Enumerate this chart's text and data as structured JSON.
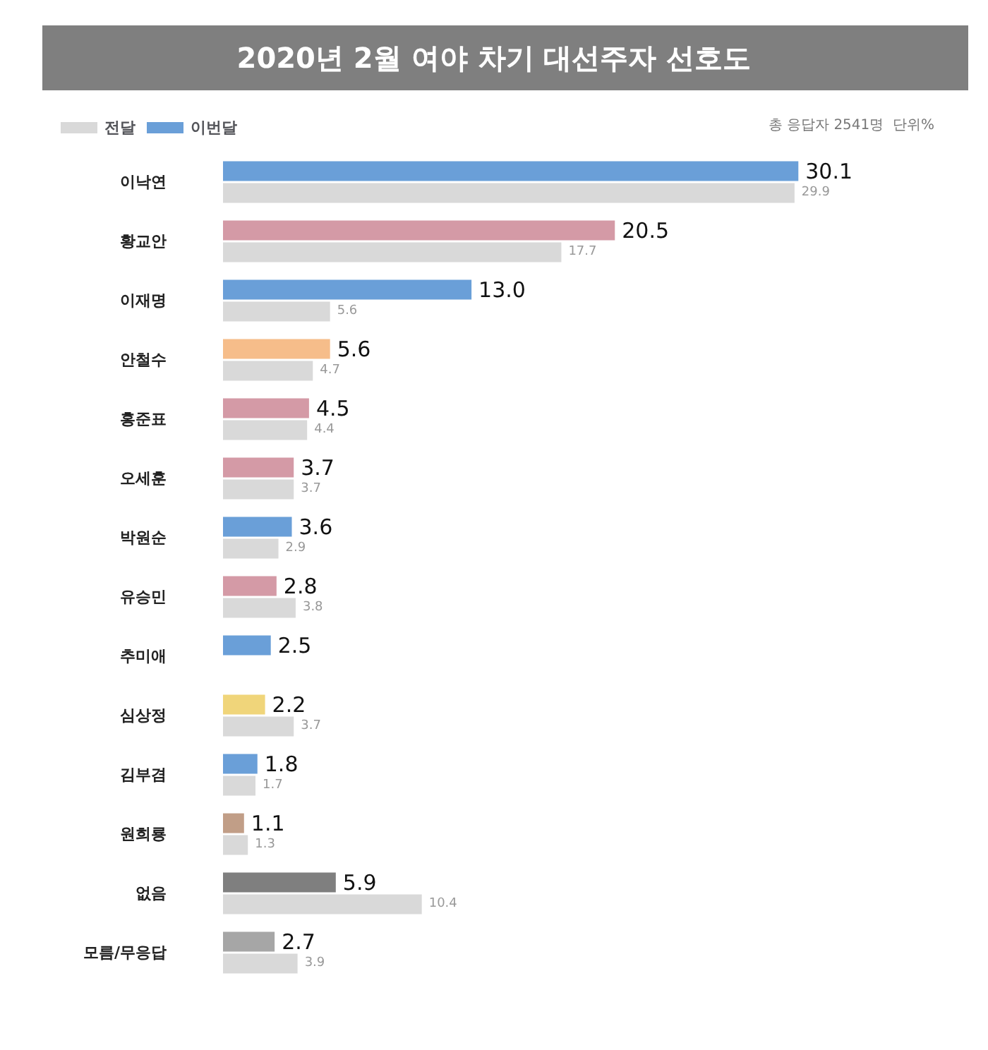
{
  "chart_data": {
    "type": "bar",
    "orientation": "horizontal",
    "title": "2020년 2월 여야 차기 대선주자 선호도",
    "annotations": [
      "총 응답자 2541명  단위%"
    ],
    "categories": [
      "이낙연",
      "황교안",
      "이재명",
      "안철수",
      "홍준표",
      "오세훈",
      "박원순",
      "유승민",
      "추미애",
      "심상정",
      "김부겸",
      "원희룡",
      "없음",
      "모름/무응답"
    ],
    "series": [
      {
        "name": "이번달",
        "color": "#6a9fd8",
        "colors": [
          "#6a9fd8",
          "#d49aa6",
          "#6a9fd8",
          "#f6bd8a",
          "#d49aa6",
          "#d49aa6",
          "#6a9fd8",
          "#d49aa6",
          "#6a9fd8",
          "#f0d57a",
          "#6a9fd8",
          "#c19e87",
          "#7f7f7f",
          "#a6a6a6"
        ],
        "values": [
          30.1,
          20.5,
          13.0,
          5.6,
          4.5,
          3.7,
          3.6,
          2.8,
          2.5,
          2.2,
          1.8,
          1.1,
          5.9,
          2.7
        ],
        "value_labels": [
          "30.1",
          "20.5",
          "13.0",
          "5.6",
          "4.5",
          "3.7",
          "3.6",
          "2.8",
          "2.5",
          "2.2",
          "1.8",
          "1.1",
          "5.9",
          "2.7"
        ]
      },
      {
        "name": "전달",
        "color": "#d9d9d9",
        "values": [
          29.9,
          17.7,
          5.6,
          4.7,
          4.4,
          3.7,
          2.9,
          3.8,
          null,
          3.7,
          1.7,
          1.3,
          10.4,
          3.9
        ],
        "value_labels": [
          "29.9",
          "17.7",
          "5.6",
          "4.7",
          "4.4",
          "3.7",
          "2.9",
          "3.8",
          null,
          "3.7",
          "1.7",
          "1.3",
          "10.4",
          "3.9"
        ]
      }
    ],
    "legend": "top left"
  }
}
